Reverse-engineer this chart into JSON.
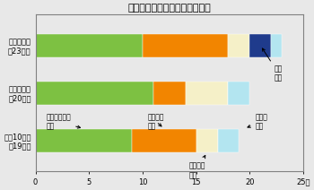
{
  "title": "振動苦情の発生源別の申立状況",
  "categories": [
    "平成８年度\n（23件）",
    "平成９年度\n（20件）",
    "平成10年度\n（19件）"
  ],
  "segments": {
    "工場・事業場": [
      10,
      11,
      9
    ],
    "建設作業": [
      8,
      3,
      6
    ],
    "道路交通": [
      2,
      4,
      2
    ],
    "鉄道": [
      2,
      0,
      0
    ],
    "その他": [
      1,
      2,
      2
    ]
  },
  "colors": {
    "工場・事業場": "#7dc142",
    "建設作業": "#f28500",
    "道路交通": "#f5f0c8",
    "鉄道": "#1f3b8c",
    "その他": "#b3e5f0"
  },
  "xlim": [
    0,
    25
  ],
  "xticks": [
    0,
    5,
    10,
    15,
    20,
    25
  ],
  "xlabel_suffix": "件",
  "background_color": "#e8e8e8",
  "plot_bg_color": "#e8e8e8",
  "bar_height": 0.5,
  "figsize": [
    3.5,
    2.12
  ],
  "dpi": 100,
  "title_fontsize": 8,
  "label_fontsize": 6,
  "tick_fontsize": 6,
  "annot_fontsize": 5.5
}
